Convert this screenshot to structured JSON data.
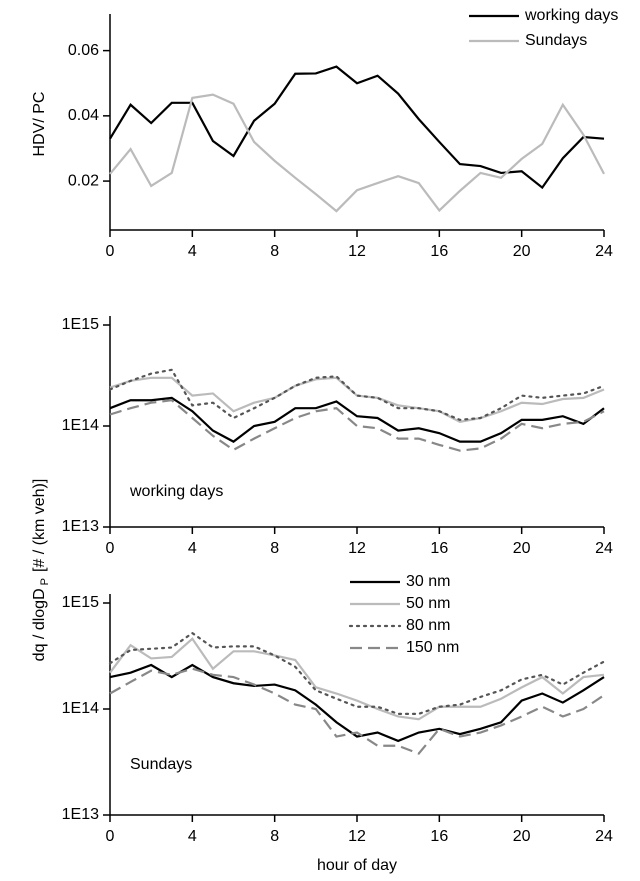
{
  "chart_data": [
    {
      "type": "line",
      "ylabel": "HDV/ PC",
      "x": [
        0,
        1,
        2,
        3,
        4,
        5,
        6,
        7,
        8,
        9,
        10,
        11,
        12,
        13,
        14,
        15,
        16,
        17,
        18,
        19,
        20,
        21,
        22,
        23,
        24
      ],
      "xlim": [
        0,
        24
      ],
      "xticks": [
        0,
        4,
        8,
        12,
        16,
        20,
        24
      ],
      "ylim": [
        0.005,
        0.07
      ],
      "yticks": [
        0.02,
        0.04,
        0.06
      ],
      "legend": "upper right",
      "series": [
        {
          "name": "working days",
          "color": "#000000",
          "dash": "solid",
          "values": [
            0.033,
            0.0434,
            0.0378,
            0.044,
            0.044,
            0.0323,
            0.0277,
            0.0385,
            0.0437,
            0.0529,
            0.053,
            0.0551,
            0.05,
            0.0523,
            0.0468,
            0.039,
            0.032,
            0.0252,
            0.0246,
            0.0225,
            0.023,
            0.018,
            0.027,
            0.0335,
            0.033
          ]
        },
        {
          "name": "Sundays",
          "color": "#bbbbbb",
          "dash": "solid",
          "values": [
            0.0222,
            0.0298,
            0.0185,
            0.0225,
            0.0455,
            0.0465,
            0.0437,
            0.032,
            0.0262,
            0.021,
            0.016,
            0.0108,
            0.0172,
            0.0194,
            0.0215,
            0.0194,
            0.011,
            0.017,
            0.0225,
            0.021,
            0.0268,
            0.0314,
            0.0434,
            0.0342,
            0.0222
          ]
        }
      ]
    },
    {
      "type": "line",
      "ylabel": [
        "dq / dlogD",
        "P",
        "[# / (km veh)]"
      ],
      "annotation": "working days",
      "x": [
        0,
        1,
        2,
        3,
        4,
        5,
        6,
        7,
        8,
        9,
        10,
        11,
        12,
        13,
        14,
        15,
        16,
        17,
        18,
        19,
        20,
        21,
        22,
        23,
        24
      ],
      "xlim": [
        0,
        24
      ],
      "xticks": [
        0,
        4,
        8,
        12,
        16,
        20,
        24
      ],
      "ylim": [
        10000000000000.0,
        1000000000000000.0
      ],
      "log": true,
      "yticks": [
        {
          "value": 10000000000000.0,
          "label": "1E13"
        },
        {
          "value": 100000000000000.0,
          "label": "1E14"
        },
        {
          "value": 1000000000000000.0,
          "label": "1E15"
        }
      ],
      "series": [
        {
          "color": "#000000",
          "dash": "solid",
          "values": [
            150000000000000.0,
            180000000000000.0,
            180000000000000.0,
            190000000000000.0,
            140000000000000.0,
            90000000000000.0,
            70000000000000.0,
            100000000000000.0,
            110000000000000.0,
            150000000000000.0,
            150000000000000.0,
            175000000000000.0,
            125000000000000.0,
            120000000000000.0,
            90000000000000.0,
            95000000000000.0,
            85000000000000.0,
            70000000000000.0,
            70000000000000.0,
            85000000000000.0,
            115000000000000.0,
            115000000000000.0,
            125000000000000.0,
            105000000000000.0,
            150000000000000.0
          ]
        },
        {
          "color": "#bbbbbb",
          "dash": "solid",
          "values": [
            240000000000000.0,
            280000000000000.0,
            300000000000000.0,
            300000000000000.0,
            200000000000000.0,
            210000000000000.0,
            140000000000000.0,
            170000000000000.0,
            190000000000000.0,
            250000000000000.0,
            290000000000000.0,
            300000000000000.0,
            200000000000000.0,
            190000000000000.0,
            160000000000000.0,
            150000000000000.0,
            140000000000000.0,
            110000000000000.0,
            120000000000000.0,
            140000000000000.0,
            170000000000000.0,
            165000000000000.0,
            185000000000000.0,
            190000000000000.0,
            230000000000000.0
          ]
        },
        {
          "color": "#555555",
          "dash": "dotted",
          "values": [
            230000000000000.0,
            280000000000000.0,
            330000000000000.0,
            360000000000000.0,
            160000000000000.0,
            170000000000000.0,
            120000000000000.0,
            150000000000000.0,
            190000000000000.0,
            250000000000000.0,
            300000000000000.0,
            310000000000000.0,
            200000000000000.0,
            190000000000000.0,
            150000000000000.0,
            150000000000000.0,
            140000000000000.0,
            115000000000000.0,
            120000000000000.0,
            150000000000000.0,
            200000000000000.0,
            190000000000000.0,
            200000000000000.0,
            210000000000000.0,
            250000000000000.0
          ]
        },
        {
          "color": "#888888",
          "dash": "dashed",
          "values": [
            130000000000000.0,
            150000000000000.0,
            170000000000000.0,
            180000000000000.0,
            120000000000000.0,
            80000000000000.0,
            58000000000000.0,
            75000000000000.0,
            95000000000000.0,
            120000000000000.0,
            140000000000000.0,
            150000000000000.0,
            100000000000000.0,
            95000000000000.0,
            75000000000000.0,
            75000000000000.0,
            65000000000000.0,
            57000000000000.0,
            60000000000000.0,
            75000000000000.0,
            105000000000000.0,
            95000000000000.0,
            105000000000000.0,
            110000000000000.0,
            140000000000000.0
          ]
        }
      ]
    },
    {
      "type": "line",
      "annotation": "Sundays",
      "xlabel": "hour of day",
      "x": [
        0,
        1,
        2,
        3,
        4,
        5,
        6,
        7,
        8,
        9,
        10,
        11,
        12,
        13,
        14,
        15,
        16,
        17,
        18,
        19,
        20,
        21,
        22,
        23,
        24
      ],
      "xlim": [
        0,
        24
      ],
      "xticks": [
        0,
        4,
        8,
        12,
        16,
        20,
        24
      ],
      "ylim": [
        10000000000000.0,
        1000000000000000.0
      ],
      "log": true,
      "yticks": [
        {
          "value": 10000000000000.0,
          "label": "1E13"
        },
        {
          "value": 100000000000000.0,
          "label": "1E14"
        },
        {
          "value": 1000000000000000.0,
          "label": "1E15"
        }
      ],
      "legend": "upper center",
      "series": [
        {
          "name": "30 nm",
          "color": "#000000",
          "dash": "solid",
          "values": [
            200000000000000.0,
            220000000000000.0,
            260000000000000.0,
            200000000000000.0,
            260000000000000.0,
            200000000000000.0,
            175000000000000.0,
            165000000000000.0,
            170000000000000.0,
            150000000000000.0,
            110000000000000.0,
            75000000000000.0,
            55000000000000.0,
            60000000000000.0,
            50000000000000.0,
            60000000000000.0,
            65000000000000.0,
            58000000000000.0,
            65000000000000.0,
            75000000000000.0,
            120000000000000.0,
            140000000000000.0,
            115000000000000.0,
            150000000000000.0,
            200000000000000.0
          ]
        },
        {
          "name": "50 nm",
          "color": "#bbbbbb",
          "dash": "solid",
          "values": [
            220000000000000.0,
            400000000000000.0,
            300000000000000.0,
            310000000000000.0,
            460000000000000.0,
            240000000000000.0,
            350000000000000.0,
            350000000000000.0,
            320000000000000.0,
            290000000000000.0,
            160000000000000.0,
            140000000000000.0,
            120000000000000.0,
            100000000000000.0,
            85000000000000.0,
            80000000000000.0,
            105000000000000.0,
            105000000000000.0,
            105000000000000.0,
            125000000000000.0,
            160000000000000.0,
            200000000000000.0,
            140000000000000.0,
            200000000000000.0,
            210000000000000.0
          ]
        },
        {
          "name": "80 nm",
          "color": "#555555",
          "dash": "dotted",
          "values": [
            270000000000000.0,
            360000000000000.0,
            370000000000000.0,
            380000000000000.0,
            520000000000000.0,
            380000000000000.0,
            390000000000000.0,
            390000000000000.0,
            320000000000000.0,
            250000000000000.0,
            150000000000000.0,
            125000000000000.0,
            105000000000000.0,
            105000000000000.0,
            90000000000000.0,
            90000000000000.0,
            105000000000000.0,
            110000000000000.0,
            130000000000000.0,
            150000000000000.0,
            190000000000000.0,
            210000000000000.0,
            170000000000000.0,
            220000000000000.0,
            280000000000000.0
          ]
        },
        {
          "name": "150 nm",
          "color": "#888888",
          "dash": "dashed",
          "values": [
            140000000000000.0,
            180000000000000.0,
            230000000000000.0,
            210000000000000.0,
            240000000000000.0,
            210000000000000.0,
            200000000000000.0,
            170000000000000.0,
            140000000000000.0,
            110000000000000.0,
            100000000000000.0,
            55000000000000.0,
            60000000000000.0,
            45000000000000.0,
            45000000000000.0,
            38000000000000.0,
            65000000000000.0,
            55000000000000.0,
            60000000000000.0,
            70000000000000.0,
            85000000000000.0,
            105000000000000.0,
            85000000000000.0,
            100000000000000.0,
            135000000000000.0
          ]
        }
      ]
    }
  ]
}
